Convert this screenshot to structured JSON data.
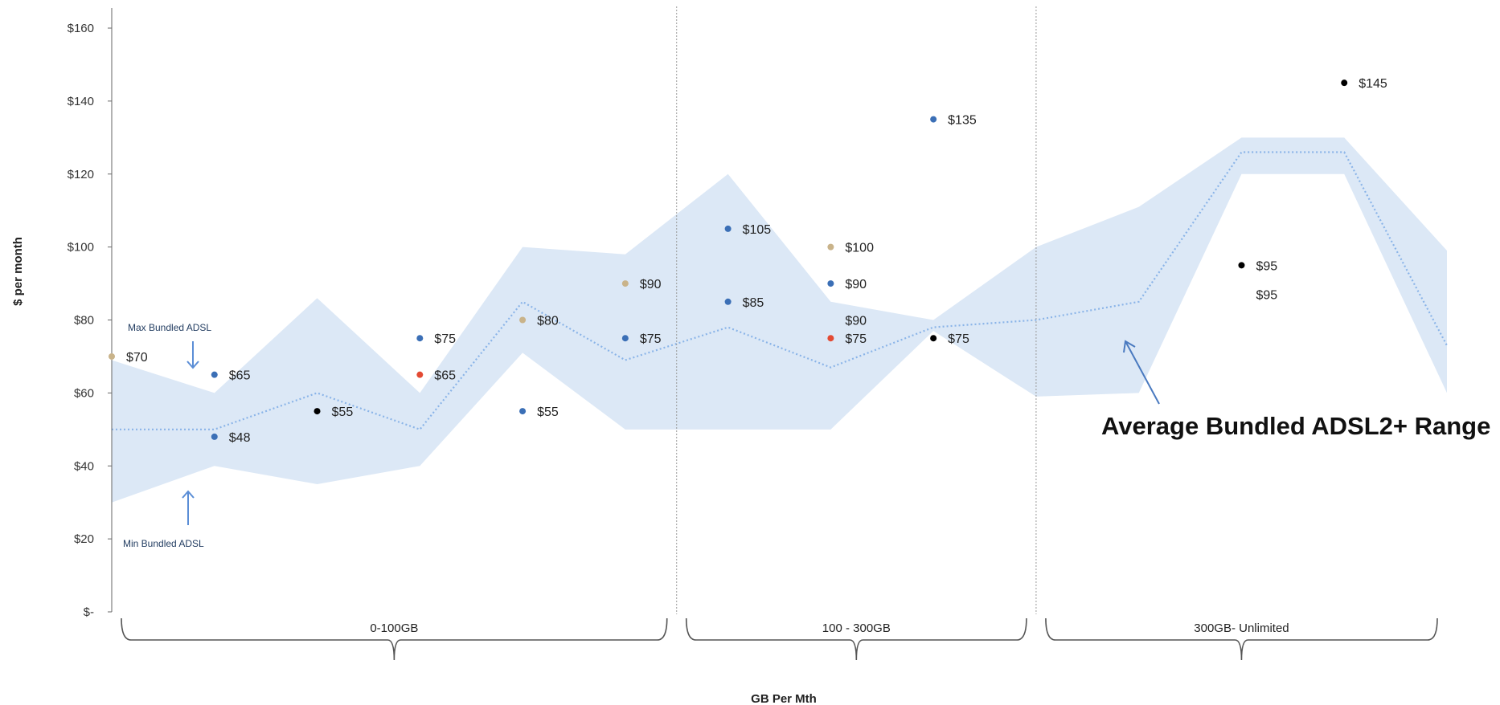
{
  "chart_data": {
    "type": "scatter",
    "xlabel": "GB Per Mth",
    "ylabel": "$ per month",
    "ylim": [
      0,
      160
    ],
    "ytick_values": [
      0,
      20,
      40,
      60,
      80,
      100,
      120,
      140,
      160
    ],
    "ytick_labels": [
      "$-",
      "$20",
      "$40",
      "$60",
      "$80",
      "$100",
      "$120",
      "$140",
      "$160"
    ],
    "xlim": [
      0,
      13
    ],
    "grid": false,
    "groups": [
      {
        "label": "0-100GB",
        "from": 0,
        "to": 5.5
      },
      {
        "label": "100 - 300GB",
        "from": 5.5,
        "to": 9
      },
      {
        "label": "300GB- Unlimited",
        "from": 9,
        "to": 13
      }
    ],
    "range_band": {
      "x": [
        0,
        1,
        2,
        3,
        4,
        5,
        6,
        7,
        8,
        9,
        10,
        11,
        12,
        13
      ],
      "max": [
        69,
        60,
        86,
        60,
        100,
        98,
        120,
        85,
        80,
        100,
        111,
        130,
        130,
        99
      ],
      "min": [
        30,
        40,
        35,
        40,
        71,
        50,
        50,
        50,
        77,
        59,
        60,
        120,
        120,
        60
      ],
      "avg": [
        50,
        50,
        60,
        50,
        85,
        69,
        78,
        67,
        78,
        80,
        85,
        126,
        126,
        73
      ],
      "band_color": "#dce8f6",
      "avg_color": "#8ab4e8"
    },
    "points": [
      {
        "x": 0,
        "y": 70,
        "label": "$70",
        "color": "#c9b38a"
      },
      {
        "x": 1,
        "y": 65,
        "label": "$65",
        "color": "#3b6fb6"
      },
      {
        "x": 1,
        "y": 48,
        "label": "$48",
        "color": "#3b6fb6"
      },
      {
        "x": 2,
        "y": 55,
        "label": "$55",
        "color": "#000000"
      },
      {
        "x": 3,
        "y": 75,
        "label": "$75",
        "color": "#3b6fb6"
      },
      {
        "x": 3,
        "y": 65,
        "label": "$65",
        "color": "#e34a33"
      },
      {
        "x": 4,
        "y": 80,
        "label": "$80",
        "color": "#c9b38a"
      },
      {
        "x": 4,
        "y": 55,
        "label": "$55",
        "color": "#3b6fb6"
      },
      {
        "x": 5,
        "y": 90,
        "label": "$90",
        "color": "#c9b38a"
      },
      {
        "x": 5,
        "y": 75,
        "label": "$75",
        "color": "#3b6fb6"
      },
      {
        "x": 6,
        "y": 105,
        "label": "$105",
        "color": "#3b6fb6"
      },
      {
        "x": 6,
        "y": 85,
        "label": "$85",
        "color": "#3b6fb6"
      },
      {
        "x": 7,
        "y": 100,
        "label": "$100",
        "color": "#c9b38a"
      },
      {
        "x": 7,
        "y": 90,
        "label": "$90",
        "color": "#3b6fb6"
      },
      {
        "x": 7,
        "y": 75,
        "label": "$75",
        "color": "#e34a33"
      },
      {
        "x": 8,
        "y": 135,
        "label": "$135",
        "color": "#3b6fb6"
      },
      {
        "x": 8,
        "y": 75,
        "label": "$75",
        "color": "#000000"
      },
      {
        "x": 11,
        "y": 95,
        "label": "$95",
        "color": "#000000"
      },
      {
        "x": 12,
        "y": 145,
        "label": "$145",
        "color": "#000000"
      }
    ],
    "extra_labels": [
      {
        "x": 7,
        "y": 80,
        "text": "$90"
      },
      {
        "x": 11,
        "y": 87,
        "text": "$95"
      }
    ],
    "annotations": {
      "max_label": "Max Bundled ADSL",
      "min_label": "Min Bundled ADSL",
      "range_label": "Average Bundled ADSL2+ Range"
    }
  }
}
